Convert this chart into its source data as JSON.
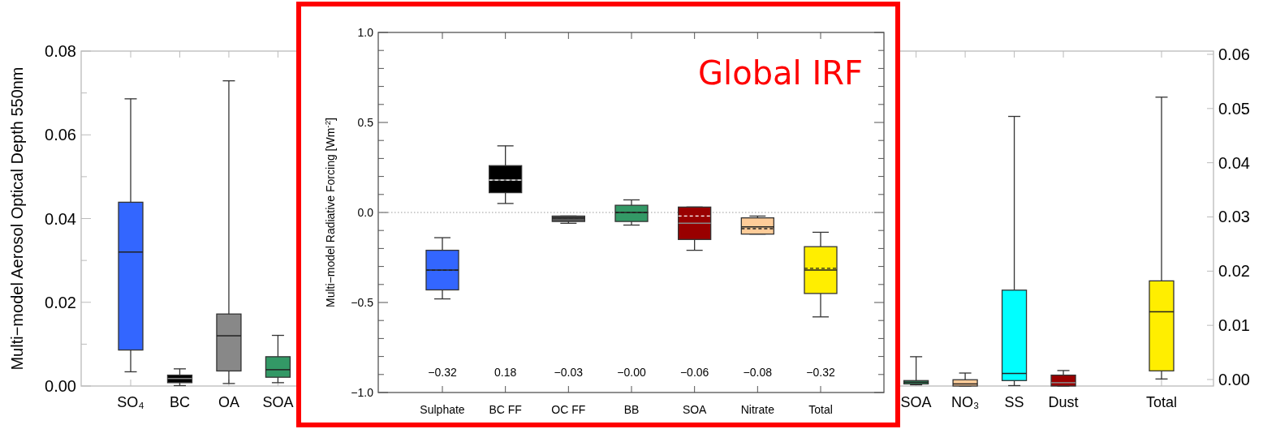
{
  "chart_data": [
    {
      "type": "box",
      "ylabel": "Multi−model Aerosol Optical Depth 550nm",
      "categories": [
        "SO₄",
        "BC",
        "OA",
        "SOA",
        null,
        null,
        null,
        null,
        null,
        null,
        null,
        null,
        null,
        null,
        null,
        null,
        "SOA",
        "NO₃",
        "SS",
        "Dust",
        null,
        "Total"
      ],
      "series": [
        {
          "colors": [
            "#3366ff",
            "#000000",
            "#888888",
            "#339966",
            null,
            null,
            null,
            null,
            null,
            null,
            null,
            null,
            null,
            null,
            null,
            null,
            "#339966",
            "#ffcc99",
            "#00ffff",
            "#990000",
            null,
            null
          ],
          "boxes": [
            {
              "low": 0.0034,
              "q1": 0.0086,
              "median": 0.032,
              "q3": 0.0439,
              "high": 0.0686
            },
            {
              "low": 0.0001,
              "q1": 0.0008,
              "median": 0.0018,
              "q3": 0.0026,
              "high": 0.0041
            },
            {
              "low": 0.0006,
              "q1": 0.0036,
              "median": 0.012,
              "q3": 0.0172,
              "high": 0.0729
            },
            {
              "low": 0.0008,
              "q1": 0.0021,
              "median": 0.0039,
              "q3": 0.007,
              "high": 0.0121
            },
            null,
            null,
            null,
            null,
            null,
            null,
            null,
            null,
            null,
            null,
            null,
            null,
            {
              "low": 0.0003,
              "q1": 0.0005,
              "median": 0.0009,
              "q3": 0.0013,
              "high": 0.007
            },
            {
              "low": 0,
              "q1": 0,
              "median": 0.0005,
              "q3": 0.0015,
              "high": 0.0031
            },
            {
              "low": 0.0001,
              "q1": 0.0013,
              "median": 0.003,
              "q3": 0.0229,
              "high": 0.0644
            },
            {
              "low": 0,
              "q1": 0,
              "median": 0.0008,
              "q3": 0.0026,
              "high": 0.0037
            },
            null,
            null
          ]
        },
        {
          "axis": "y2",
          "colors": [
            null,
            null,
            null,
            null,
            null,
            null,
            null,
            null,
            null,
            null,
            null,
            null,
            null,
            null,
            null,
            null,
            null,
            null,
            null,
            null,
            null,
            "#ffee00"
          ],
          "boxes": [
            null,
            null,
            null,
            null,
            null,
            null,
            null,
            null,
            null,
            null,
            null,
            null,
            null,
            null,
            null,
            null,
            null,
            null,
            null,
            null,
            null,
            {
              "low": 0.0001,
              "q1": 0.0016,
              "median": 0.0125,
              "q3": 0.0182,
              "high": 0.0521
            }
          ]
        }
      ],
      "ylim": [
        0,
        0.08
      ],
      "yticks": [
        {
          "value": 0,
          "label": "0.00"
        },
        {
          "value": 0.01,
          "label": null
        },
        {
          "value": 0.02,
          "label": "0.02"
        },
        {
          "value": 0.03,
          "label": null
        },
        {
          "value": 0.04,
          "label": "0.04"
        },
        {
          "value": 0.05,
          "label": null
        },
        {
          "value": 0.06,
          "label": "0.06"
        },
        {
          "value": 0.07,
          "label": null
        },
        {
          "value": 0.08,
          "label": "0.08"
        }
      ],
      "y2lim": [
        -0.0012,
        0.0606
      ],
      "y2ticks": [
        {
          "value": 0,
          "label": "0.00"
        },
        {
          "value": 0.01,
          "label": "0.01"
        },
        {
          "value": 0.02,
          "label": "0.02"
        },
        {
          "value": 0.03,
          "label": "0.03"
        },
        {
          "value": 0.04,
          "label": "0.04"
        },
        {
          "value": 0.05,
          "label": "0.05"
        },
        {
          "value": 0.06,
          "label": "0.06"
        }
      ]
    },
    {
      "type": "box",
      "title": "Global IRF",
      "ylabel": "Multi−model Radiative Forcing [Wm$^{-2}$]",
      "categories": [
        "Sulphate",
        "BC FF",
        "OC FF",
        "BB",
        "SOA",
        "Nitrate",
        "Total"
      ],
      "colors": [
        "#3366ff",
        "#000000",
        "#555555",
        "#339966",
        "#990000",
        "#ffcc99",
        "#ffee00"
      ],
      "boxes": [
        {
          "low": -0.48,
          "q1": -0.43,
          "median": -0.32,
          "q3": -0.21,
          "high": -0.14,
          "mean": -0.32
        },
        {
          "low": 0.05,
          "q1": 0.11,
          "median": 0.18,
          "q3": 0.26,
          "high": 0.37,
          "mean": 0.18
        },
        {
          "low": -0.06,
          "q1": -0.05,
          "median": -0.03,
          "q3": -0.02,
          "high": -0.02,
          "mean": -0.03
        },
        {
          "low": -0.07,
          "q1": -0.05,
          "median": 0,
          "q3": 0.04,
          "high": 0.07,
          "mean": 0
        },
        {
          "low": -0.21,
          "q1": -0.15,
          "median": -0.06,
          "q3": 0.03,
          "high": 0.03,
          "mean": -0.02
        },
        {
          "low": -0.12,
          "q1": -0.12,
          "median": -0.08,
          "q3": -0.03,
          "high": -0.02,
          "mean": -0.09
        },
        {
          "low": -0.58,
          "q1": -0.45,
          "median": -0.32,
          "q3": -0.19,
          "high": -0.11,
          "mean": -0.31
        }
      ],
      "ylim": [
        -1,
        1
      ],
      "yticks": [
        {
          "value": -1,
          "label": "−1.0"
        },
        {
          "value": -0.9,
          "label": null
        },
        {
          "value": -0.8,
          "label": null
        },
        {
          "value": -0.7,
          "label": null
        },
        {
          "value": -0.6,
          "label": null
        },
        {
          "value": -0.5,
          "label": "−0.5"
        },
        {
          "value": -0.4,
          "label": null
        },
        {
          "value": -0.3,
          "label": null
        },
        {
          "value": -0.2,
          "label": null
        },
        {
          "value": -0.1,
          "label": null
        },
        {
          "value": 0,
          "label": "0.0"
        },
        {
          "value": 0.1,
          "label": null
        },
        {
          "value": 0.2,
          "label": null
        },
        {
          "value": 0.3,
          "label": null
        },
        {
          "value": 0.4,
          "label": null
        },
        {
          "value": 0.5,
          "label": "0.5"
        },
        {
          "value": 0.6,
          "label": null
        },
        {
          "value": 0.7,
          "label": null
        },
        {
          "value": 0.8,
          "label": null
        },
        {
          "value": 0.9,
          "label": null
        },
        {
          "value": 1,
          "label": "1.0"
        }
      ],
      "ref_lines": [
        {
          "axis": "y",
          "value": 0,
          "color": "#999999",
          "line_style": "dotted"
        }
      ],
      "annotations": [
        "−0.32",
        "0.18",
        "−0.03",
        "−0.00",
        "−0.06",
        "−0.08",
        "−0.32"
      ]
    }
  ]
}
